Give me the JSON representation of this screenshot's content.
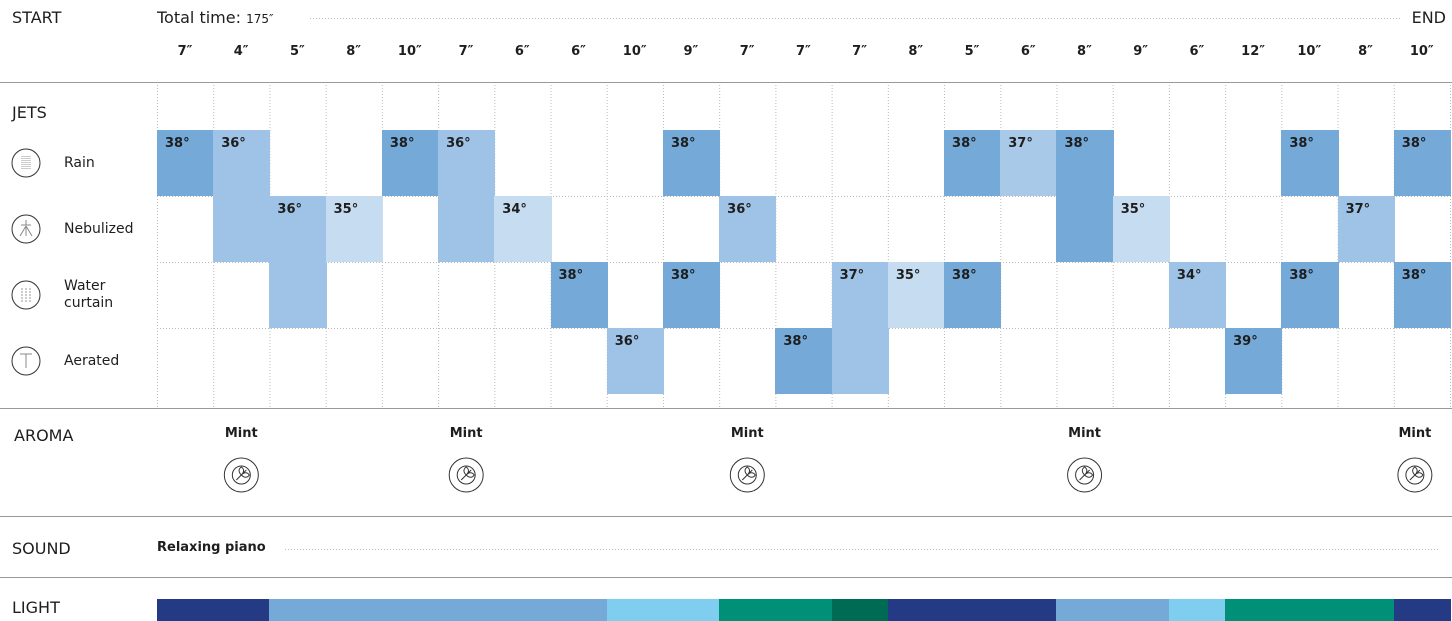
{
  "header": {
    "start": "START",
    "total_label": "Total time:",
    "total": "175″",
    "end": "END"
  },
  "columns": [
    "7″",
    "4″",
    "5″",
    "8″",
    "10″",
    "7″",
    "6″",
    "6″",
    "10″",
    "9″",
    "7″",
    "7″",
    "7″",
    "8″",
    "5″",
    "6″",
    "8″",
    "9″",
    "6″",
    "12″",
    "10″",
    "8″",
    "10″"
  ],
  "jets": {
    "title": "JETS",
    "rows": [
      "Rain",
      "Nebulized",
      "Water curtain",
      "Aerated"
    ],
    "blocks": [
      {
        "row": 0,
        "col": 0,
        "label": "38°",
        "rowspan": 1,
        "color": "#74a9d8"
      },
      {
        "row": 0,
        "col": 1,
        "label": "36°",
        "rowspan": 2,
        "color": "#9fc3e6"
      },
      {
        "row": 1,
        "col": 2,
        "label": "36°",
        "rowspan": 2,
        "color": "#9fc3e6"
      },
      {
        "row": 1,
        "col": 3,
        "label": "35°",
        "rowspan": 1,
        "color": "#c6dcf0"
      },
      {
        "row": 0,
        "col": 4,
        "label": "38°",
        "rowspan": 1,
        "color": "#74a9d8"
      },
      {
        "row": 0,
        "col": 5,
        "label": "36°",
        "rowspan": 2,
        "color": "#9fc3e6"
      },
      {
        "row": 1,
        "col": 6,
        "label": "34°",
        "rowspan": 1,
        "color": "#c6dcf0"
      },
      {
        "row": 2,
        "col": 7,
        "label": "38°",
        "rowspan": 1,
        "color": "#74a9d8"
      },
      {
        "row": 3,
        "col": 8,
        "label": "36°",
        "rowspan": 1,
        "color": "#9fc3e6"
      },
      {
        "row": 0,
        "col": 9,
        "label": "38°",
        "rowspan": 1,
        "color": "#74a9d8"
      },
      {
        "row": 2,
        "col": 9,
        "label": "38°",
        "rowspan": 1,
        "color": "#74a9d8"
      },
      {
        "row": 1,
        "col": 10,
        "label": "36°",
        "rowspan": 1,
        "color": "#9fc3e6"
      },
      {
        "row": 3,
        "col": 11,
        "label": "38°",
        "rowspan": 1,
        "color": "#74a9d8"
      },
      {
        "row": 2,
        "col": 12,
        "label": "37°",
        "rowspan": 2,
        "color": "#9fc3e6"
      },
      {
        "row": 2,
        "col": 13,
        "label": "35°",
        "rowspan": 1,
        "color": "#c6dcf0"
      },
      {
        "row": 0,
        "col": 14,
        "label": "38°",
        "rowspan": 1,
        "color": "#74a9d8"
      },
      {
        "row": 2,
        "col": 14,
        "label": "38°",
        "rowspan": 1,
        "color": "#74a9d8"
      },
      {
        "row": 0,
        "col": 15,
        "label": "37°",
        "rowspan": 1,
        "color": "#a8c9e8"
      },
      {
        "row": 0,
        "col": 16,
        "label": "38°",
        "rowspan": 2,
        "color": "#74a9d8"
      },
      {
        "row": 1,
        "col": 17,
        "label": "35°",
        "rowspan": 1,
        "color": "#c6dcf0"
      },
      {
        "row": 2,
        "col": 18,
        "label": "34°",
        "rowspan": 1,
        "color": "#9fc3e6"
      },
      {
        "row": 3,
        "col": 19,
        "label": "39°",
        "rowspan": 1,
        "color": "#74a9d8"
      },
      {
        "row": 0,
        "col": 20,
        "label": "38°",
        "rowspan": 1,
        "color": "#74a9d8"
      },
      {
        "row": 2,
        "col": 20,
        "label": "38°",
        "rowspan": 1,
        "color": "#74a9d8"
      },
      {
        "row": 1,
        "col": 21,
        "label": "37°",
        "rowspan": 1,
        "color": "#9fc3e6"
      },
      {
        "row": 0,
        "col": 22,
        "label": "38°",
        "rowspan": 1,
        "color": "#74a9d8"
      },
      {
        "row": 2,
        "col": 22,
        "label": "38°",
        "rowspan": 1,
        "color": "#74a9d8"
      }
    ]
  },
  "aroma": {
    "title": "AROMA",
    "items": [
      {
        "col": 1,
        "label": "Mint"
      },
      {
        "col": 5,
        "label": "Mint"
      },
      {
        "col": 10,
        "label": "Mint"
      },
      {
        "col": 16,
        "label": "Mint"
      },
      {
        "col": 22,
        "label": "Mint"
      }
    ]
  },
  "sound": {
    "title": "SOUND",
    "track": "Relaxing piano"
  },
  "light": {
    "title": "LIGHT",
    "colors": [
      "#253a84",
      "#253a84",
      "#74a9d8",
      "#74a9d8",
      "#74a9d8",
      "#74a9d8",
      "#74a9d8",
      "#74a9d8",
      "#7fcef0",
      "#7fcef0",
      "#009077",
      "#009077",
      "#006b55",
      "#253a84",
      "#253a84",
      "#253a84",
      "#74a9d8",
      "#74a9d8",
      "#7fcef0",
      "#009077",
      "#009077",
      "#009077",
      "#253a84"
    ]
  }
}
